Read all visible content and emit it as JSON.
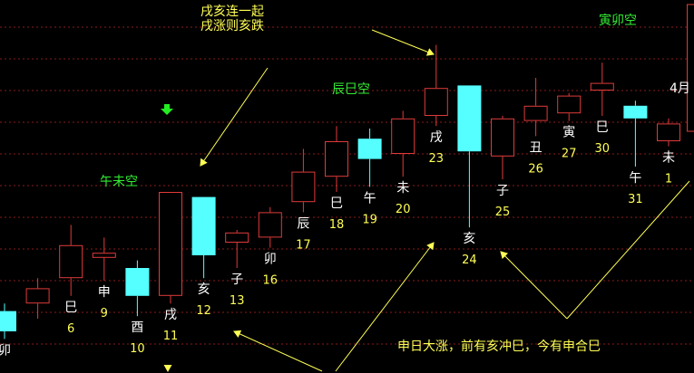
{
  "colors": {
    "background": "#000000",
    "grid": "#8b1a1a",
    "up_candle": "#e03a3a",
    "down_candle": "#55ffff",
    "branch_label": "#ffffff",
    "date_label": "#ffff55",
    "annotation_yellow": "#ffff55",
    "annotation_green": "#33ee33",
    "arrow": "#ffff55",
    "marker": "#22ee22"
  },
  "icons": {
    "marker": "green-down-arrow-icon"
  },
  "annotations": {
    "top_note_line1": "戌亥连一起",
    "top_note_line2": "戌涨则亥跌",
    "wu_wei_kong": "午未空",
    "chen_si_kong": "辰巳空",
    "yin_mao_kong": "寅卯空",
    "bottom_note": "申日大涨，前有亥冲巳，今有申合巳",
    "month_label": "4月"
  },
  "chart_data": {
    "type": "candlestick",
    "title": "",
    "xlabel": "",
    "ylabel": "",
    "grid": true,
    "ylim": [
      0,
      100
    ],
    "candles": [
      {
        "branch": "卯",
        "date": "",
        "open": 13,
        "close": 5,
        "high": 16,
        "low": 2
      },
      {
        "branch": "",
        "date": "",
        "open": 16,
        "close": 22,
        "high": 26,
        "low": 10
      },
      {
        "branch": "巳",
        "date": "6",
        "open": 26,
        "close": 39,
        "high": 47,
        "low": 19
      },
      {
        "branch": "申",
        "date": "9",
        "open": 34,
        "close": 36,
        "high": 42,
        "low": 25
      },
      {
        "branch": "酉",
        "date": "10",
        "open": 30,
        "close": 19,
        "high": 33,
        "low": 11
      },
      {
        "branch": "戌",
        "date": "11",
        "open": 19,
        "close": 60,
        "high": 60,
        "low": 16
      },
      {
        "branch": "亥",
        "date": "12",
        "open": 58,
        "close": 35,
        "high": 58,
        "low": 26
      },
      {
        "branch": "子",
        "date": "13",
        "open": 40,
        "close": 44,
        "high": 45,
        "low": 30
      },
      {
        "branch": "卯",
        "date": "16",
        "open": 42,
        "close": 52,
        "high": 54,
        "low": 38
      },
      {
        "branch": "辰",
        "date": "17",
        "open": 56,
        "close": 68,
        "high": 77,
        "low": 52
      },
      {
        "branch": "巳",
        "date": "18",
        "open": 66,
        "close": 80,
        "high": 86,
        "low": 60
      },
      {
        "branch": "午",
        "date": "19",
        "open": 81,
        "close": 73,
        "high": 85,
        "low": 62
      },
      {
        "branch": "未",
        "date": "20",
        "open": 75,
        "close": 89,
        "high": 92,
        "low": 66
      },
      {
        "branch": "戌",
        "date": "23",
        "open": 90,
        "close": 101,
        "high": 118,
        "low": 86
      },
      {
        "branch": "亥",
        "date": "24",
        "open": 102,
        "close": 76,
        "high": 102,
        "low": 46
      },
      {
        "branch": "子",
        "date": "25",
        "open": 74,
        "close": 89,
        "high": 90,
        "low": 65
      },
      {
        "branch": "丑",
        "date": "26",
        "open": 88,
        "close": 94,
        "high": 105,
        "low": 82
      },
      {
        "branch": "寅",
        "date": "27",
        "open": 91,
        "close": 98,
        "high": 99,
        "low": 88
      },
      {
        "branch": "巳",
        "date": "30",
        "open": 100,
        "close": 103,
        "high": 111,
        "low": 90
      },
      {
        "branch": "午",
        "date": "31",
        "open": 94,
        "close": 89,
        "high": 96,
        "low": 70
      },
      {
        "branch": "未",
        "date": "1",
        "open": 80,
        "close": 87,
        "high": 89,
        "low": 78
      }
    ]
  }
}
